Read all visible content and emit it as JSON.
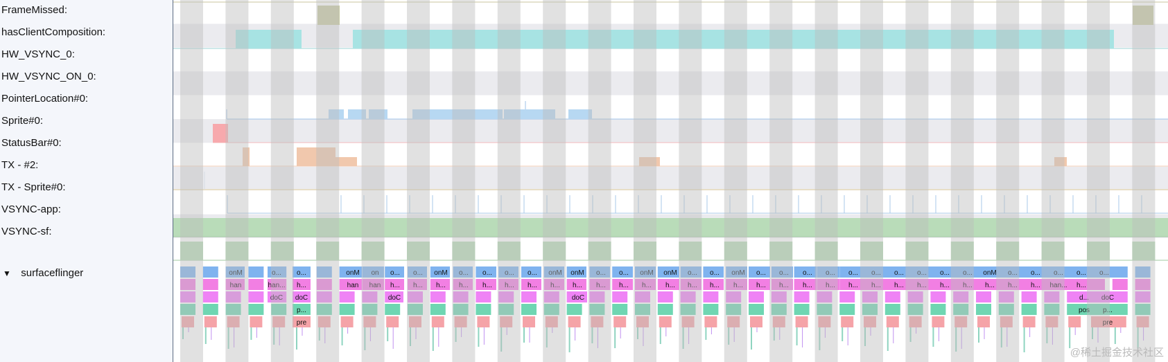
{
  "tracks": [
    {
      "label": "FrameMissed:"
    },
    {
      "label": "hasClientComposition:"
    },
    {
      "label": "HW_VSYNC_0:"
    },
    {
      "label": "HW_VSYNC_ON_0:"
    },
    {
      "label": "PointerLocation#0:"
    },
    {
      "label": "Sprite#0:"
    },
    {
      "label": "StatusBar#0:"
    },
    {
      "label": "TX - #2:"
    },
    {
      "label": "TX - Sprite#0:"
    },
    {
      "label": "VSYNC-app:"
    },
    {
      "label": "VSYNC-sf:"
    }
  ],
  "process": {
    "label": "surfaceflinger",
    "expand_glyph": "▼"
  },
  "colors": {
    "frame_missed": "#c8cba4",
    "client_composition": "#a7e3e3",
    "pointer": "#b7d8f2",
    "sprite": "#f7a9ad",
    "status_bar": "#f1c8ad",
    "vsync": "#b9dcb9",
    "slice_blue": "#7fb3ef",
    "slice_pink": "#f27fe3",
    "slice_pink2": "#ef83f5",
    "slice_green": "#6fd6b2",
    "slice_red": "#f5a3a8"
  },
  "slices": {
    "row1": [
      "onM",
      "o...",
      "o...",
      "onM",
      "on",
      "o...",
      "o...",
      "onM",
      "o...",
      "o...",
      "o...",
      "o...",
      "onM",
      "onM",
      "o...",
      "o...",
      "onM",
      "onM",
      "o...",
      "o...",
      "onM",
      "o...",
      "o...",
      "o...",
      "o...",
      "o...",
      "o...",
      "o...",
      "o...",
      "o...",
      "o...",
      "onM",
      "o...",
      "o...",
      "o...",
      "o...",
      "o..."
    ],
    "row2": [
      "han",
      "han...",
      "h...",
      "han",
      "han",
      "h...",
      "h...",
      "h...",
      "h...",
      "h...",
      "h...",
      "h...",
      "h...",
      "h...",
      "h...",
      "h...",
      "h...",
      "h...",
      "h...",
      "h...",
      "h...",
      "h...",
      "h...",
      "h...",
      "h...",
      "h...",
      "h...",
      "h...",
      "h...",
      "h...",
      "h...",
      "h...",
      "h...",
      "h...",
      "han...",
      "h..."
    ],
    "row3": [
      "doC",
      "doC",
      "doC",
      "doC",
      "d...",
      "doC"
    ],
    "row4": [
      "p...",
      "pos",
      "p..."
    ],
    "row5": [
      "pre",
      "pre"
    ]
  },
  "watermark": "@稀土掘金技术社区"
}
